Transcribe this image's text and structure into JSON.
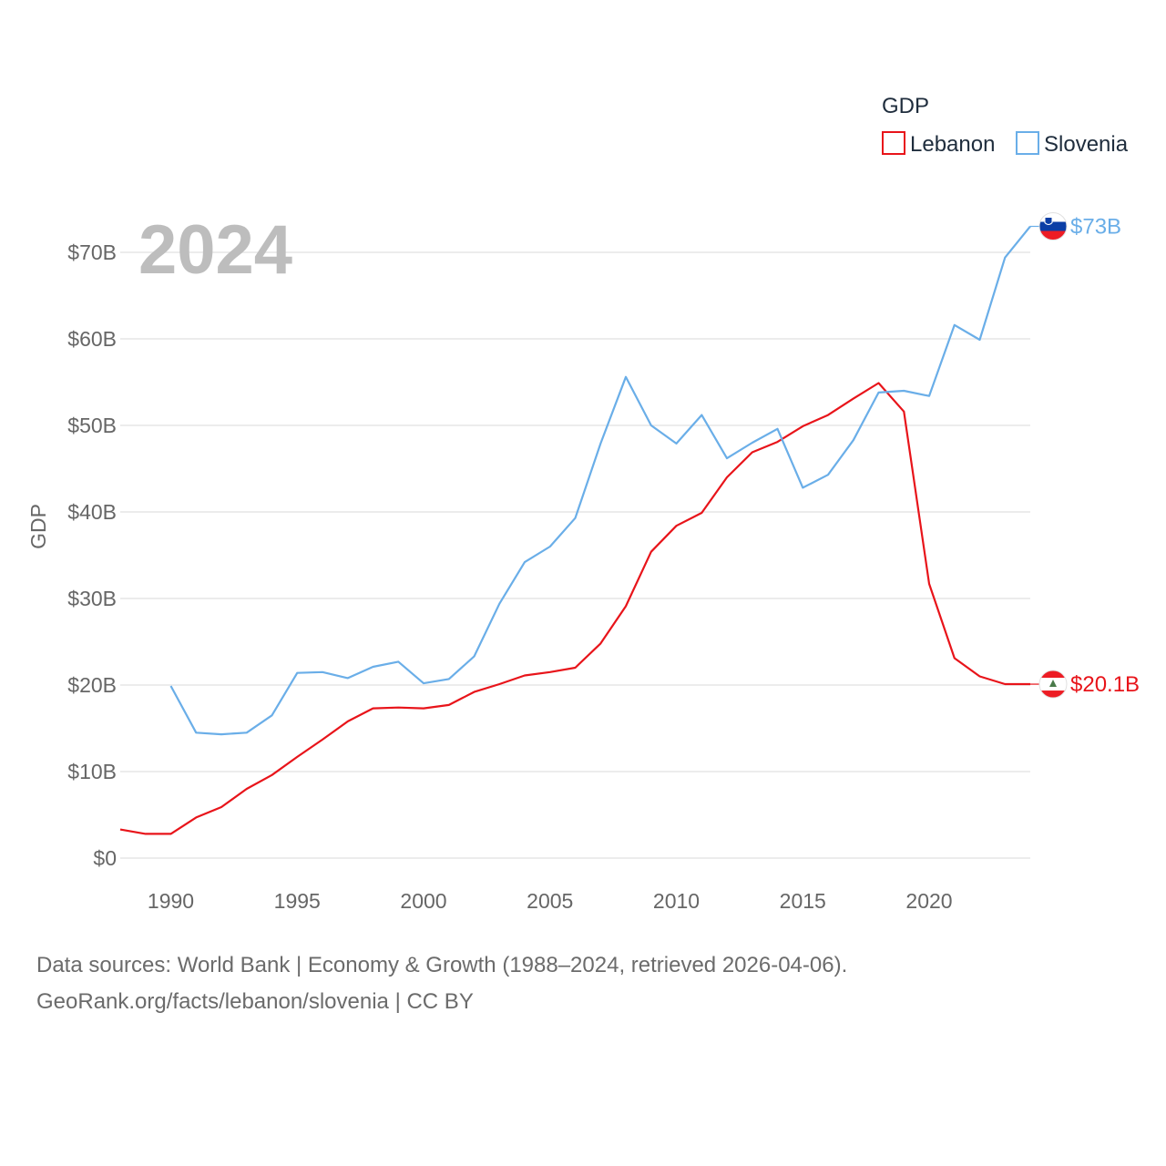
{
  "chart_data": {
    "type": "line",
    "title": "GDP",
    "year_label": "2024",
    "ylabel": "GDP",
    "xlabel": "",
    "xlim": [
      1988,
      2024
    ],
    "ylim": [
      0,
      70
    ],
    "x_ticks": [
      1990,
      1995,
      2000,
      2005,
      2010,
      2015,
      2020
    ],
    "x_tick_labels": [
      "1990",
      "1995",
      "2000",
      "2005",
      "2010",
      "2015",
      "2020"
    ],
    "y_ticks": [
      0,
      10,
      20,
      30,
      40,
      50,
      60,
      70
    ],
    "y_tick_labels": [
      "$0",
      "$10B",
      "$20B",
      "$30B",
      "$40B",
      "$50B",
      "$60B",
      "$70B"
    ],
    "legend_position": "top-right",
    "grid": true,
    "series": [
      {
        "name": "Lebanon",
        "color": "#e8141a",
        "end_label": "$20.1B",
        "flag_icon": "lebanon-flag-icon",
        "x": [
          1988,
          1989,
          1990,
          1991,
          1992,
          1993,
          1994,
          1995,
          1996,
          1997,
          1998,
          1999,
          2000,
          2001,
          2002,
          2003,
          2004,
          2005,
          2006,
          2007,
          2008,
          2009,
          2010,
          2011,
          2012,
          2013,
          2014,
          2015,
          2016,
          2017,
          2018,
          2019,
          2020,
          2021,
          2022,
          2023,
          2024
        ],
        "values": [
          3.3,
          2.8,
          2.8,
          4.7,
          5.9,
          8.0,
          9.6,
          11.7,
          13.7,
          15.8,
          17.3,
          17.4,
          17.3,
          17.7,
          19.2,
          20.1,
          21.1,
          21.5,
          22.0,
          24.8,
          29.1,
          35.4,
          38.4,
          39.9,
          44.0,
          46.9,
          48.1,
          49.9,
          51.2,
          53.1,
          54.9,
          51.6,
          31.7,
          23.1,
          21.0,
          20.1,
          20.1
        ]
      },
      {
        "name": "Slovenia",
        "color": "#6aaee8",
        "end_label": "$73B",
        "flag_icon": "slovenia-flag-icon",
        "x": [
          1990,
          1991,
          1992,
          1993,
          1994,
          1995,
          1996,
          1997,
          1998,
          1999,
          2000,
          2001,
          2002,
          2003,
          2004,
          2005,
          2006,
          2007,
          2008,
          2009,
          2010,
          2011,
          2012,
          2013,
          2014,
          2015,
          2016,
          2017,
          2018,
          2019,
          2020,
          2021,
          2022,
          2023,
          2024
        ],
        "values": [
          19.9,
          14.5,
          14.3,
          14.5,
          16.5,
          21.4,
          21.5,
          20.8,
          22.1,
          22.7,
          20.2,
          20.7,
          23.3,
          29.4,
          34.2,
          36.0,
          39.3,
          47.9,
          55.6,
          50.0,
          47.9,
          51.2,
          46.2,
          48.0,
          49.6,
          42.8,
          44.3,
          48.3,
          53.8,
          54.0,
          53.4,
          61.6,
          59.9,
          69.4,
          73.0
        ]
      }
    ]
  },
  "footer": {
    "line1": "Data sources: World Bank | Economy & Growth (1988–2024, retrieved 2026-04-06).",
    "line2": "GeoRank.org/facts/lebanon/slovenia | CC BY"
  }
}
